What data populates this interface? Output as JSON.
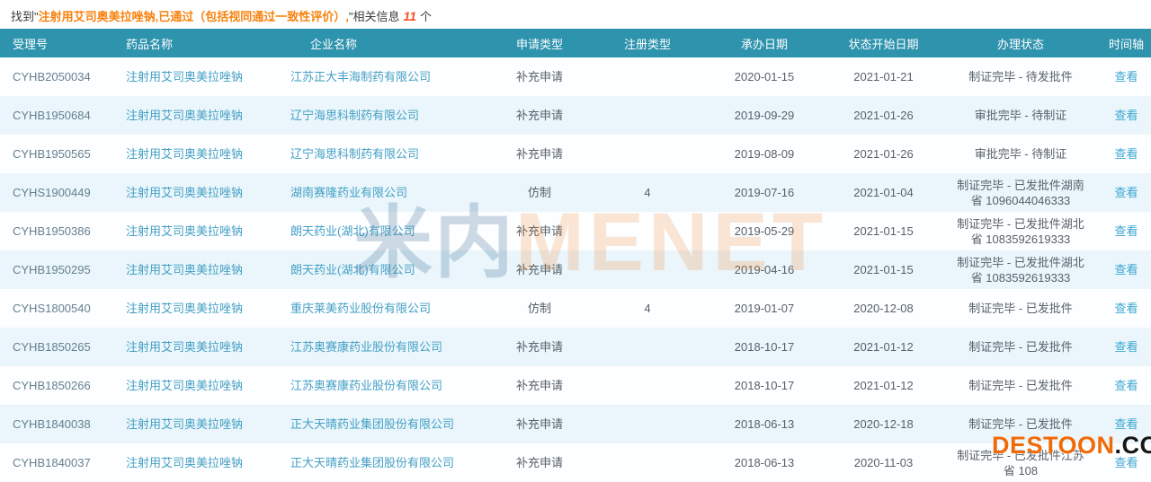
{
  "result_bar": {
    "prefix": "找到\"",
    "query": "注射用艾司奥美拉唑钠,已通过（包括视同通过一致性评价）,",
    "suffix": "\"相关信息",
    "count": "11",
    "unit": "个"
  },
  "table": {
    "columns": [
      {
        "key": "acceptance_no",
        "label": "受理号",
        "class": "acc",
        "hclass": "h-acc",
        "link": false
      },
      {
        "key": "drug_name",
        "label": "药品名称",
        "class": "drug",
        "hclass": "h-drug",
        "link": true
      },
      {
        "key": "company",
        "label": "企业名称",
        "class": "company",
        "hclass": "h-company",
        "link": true
      },
      {
        "key": "apply_type",
        "label": "申请类型",
        "class": "center",
        "hclass": "",
        "link": false
      },
      {
        "key": "reg_type",
        "label": "注册类型",
        "class": "center",
        "hclass": "",
        "link": false
      },
      {
        "key": "accept_date",
        "label": "承办日期",
        "class": "center",
        "hclass": "",
        "link": false
      },
      {
        "key": "status_date",
        "label": "状态开始日期",
        "class": "center",
        "hclass": "",
        "link": false
      },
      {
        "key": "status",
        "label": "办理状态",
        "class": "status",
        "hclass": "",
        "link": false
      },
      {
        "key": "action",
        "label": "时间轴",
        "class": "action",
        "hclass": "",
        "link": true
      }
    ],
    "rows": [
      {
        "acceptance_no": "CYHB2050034",
        "drug_name": "注射用艾司奥美拉唑钠",
        "company": "江苏正大丰海制药有限公司",
        "apply_type": "补充申请",
        "reg_type": "",
        "accept_date": "2020-01-15",
        "status_date": "2021-01-21",
        "status": "制证完毕 - 待发批件",
        "action": "查看"
      },
      {
        "acceptance_no": "CYHB1950684",
        "drug_name": "注射用艾司奥美拉唑钠",
        "company": "辽宁海思科制药有限公司",
        "apply_type": "补充申请",
        "reg_type": "",
        "accept_date": "2019-09-29",
        "status_date": "2021-01-26",
        "status": "审批完毕 - 待制证",
        "action": "查看"
      },
      {
        "acceptance_no": "CYHB1950565",
        "drug_name": "注射用艾司奥美拉唑钠",
        "company": "辽宁海思科制药有限公司",
        "apply_type": "补充申请",
        "reg_type": "",
        "accept_date": "2019-08-09",
        "status_date": "2021-01-26",
        "status": "审批完毕 - 待制证",
        "action": "查看"
      },
      {
        "acceptance_no": "CYHS1900449",
        "drug_name": "注射用艾司奥美拉唑钠",
        "company": "湖南赛隆药业有限公司",
        "apply_type": "仿制",
        "reg_type": "4",
        "accept_date": "2019-07-16",
        "status_date": "2021-01-04",
        "status": "制证完毕 - 已发批件湖南省 1096044046333",
        "action": "查看"
      },
      {
        "acceptance_no": "CYHB1950386",
        "drug_name": "注射用艾司奥美拉唑钠",
        "company": "朗天药业(湖北)有限公司",
        "apply_type": "补充申请",
        "reg_type": "",
        "accept_date": "2019-05-29",
        "status_date": "2021-01-15",
        "status": "制证完毕 - 已发批件湖北省 1083592619333",
        "action": "查看"
      },
      {
        "acceptance_no": "CYHB1950295",
        "drug_name": "注射用艾司奥美拉唑钠",
        "company": "朗天药业(湖北)有限公司",
        "apply_type": "补充申请",
        "reg_type": "",
        "accept_date": "2019-04-16",
        "status_date": "2021-01-15",
        "status": "制证完毕 - 已发批件湖北省 1083592619333",
        "action": "查看"
      },
      {
        "acceptance_no": "CYHS1800540",
        "drug_name": "注射用艾司奥美拉唑钠",
        "company": "重庆莱美药业股份有限公司",
        "apply_type": "仿制",
        "reg_type": "4",
        "accept_date": "2019-01-07",
        "status_date": "2020-12-08",
        "status": "制证完毕 - 已发批件",
        "action": "查看"
      },
      {
        "acceptance_no": "CYHB1850265",
        "drug_name": "注射用艾司奥美拉唑钠",
        "company": "江苏奥赛康药业股份有限公司",
        "apply_type": "补充申请",
        "reg_type": "",
        "accept_date": "2018-10-17",
        "status_date": "2021-01-12",
        "status": "制证完毕 - 已发批件",
        "action": "查看"
      },
      {
        "acceptance_no": "CYHB1850266",
        "drug_name": "注射用艾司奥美拉唑钠",
        "company": "江苏奥赛康药业股份有限公司",
        "apply_type": "补充申请",
        "reg_type": "",
        "accept_date": "2018-10-17",
        "status_date": "2021-01-12",
        "status": "制证完毕 - 已发批件",
        "action": "查看"
      },
      {
        "acceptance_no": "CYHB1840038",
        "drug_name": "注射用艾司奥美拉唑钠",
        "company": "正大天晴药业集团股份有限公司",
        "apply_type": "补充申请",
        "reg_type": "",
        "accept_date": "2018-06-13",
        "status_date": "2020-12-18",
        "status": "制证完毕 - 已发批件",
        "action": "查看"
      },
      {
        "acceptance_no": "CYHB1840037",
        "drug_name": "注射用艾司奥美拉唑钠",
        "company": "正大天晴药业集团股份有限公司",
        "apply_type": "补充申请",
        "reg_type": "",
        "accept_date": "2018-06-13",
        "status_date": "2020-11-03",
        "status": "制证完毕 - 已发批件江苏省 108",
        "action": "查看"
      }
    ]
  },
  "watermarks": {
    "center_cn": "米内",
    "center_en": "MENET",
    "corner_orange": "DESTOON",
    "corner_dark": ".COM"
  },
  "colors": {
    "header_bg": "#2e93ad",
    "alt_row_bg": "#eaf6fb",
    "link_blue": "#45a0c5",
    "highlight_orange": "#f8820e",
    "count_red": "#f3502a"
  }
}
